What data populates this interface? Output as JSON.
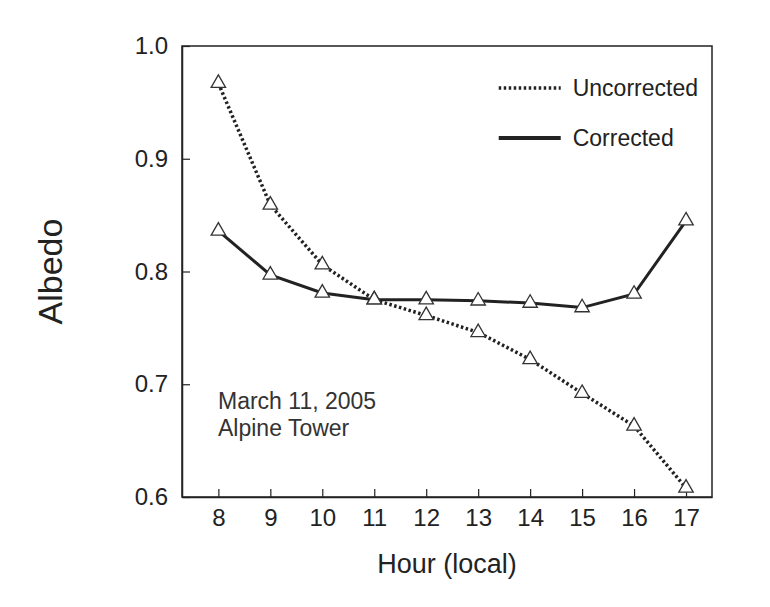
{
  "chart_data": {
    "type": "line",
    "x_label": "Hour (local)",
    "y_label": "Albedo",
    "annotations": [
      "March 11, 2005",
      "Alpine Tower"
    ],
    "x": [
      8,
      9,
      10,
      11,
      12,
      13,
      14,
      15,
      16,
      17
    ],
    "series": [
      {
        "name": "Uncorrected",
        "color": "#222222",
        "line_style": "dotted",
        "marker": "triangle",
        "values": [
          0.967,
          0.859,
          0.806,
          0.775,
          0.761,
          0.746,
          0.722,
          0.692,
          0.663,
          0.608
        ]
      },
      {
        "name": "Corrected",
        "color": "#222222",
        "line_style": "solid",
        "marker": "triangle",
        "values": [
          0.836,
          0.797,
          0.781,
          0.775,
          0.775,
          0.774,
          0.772,
          0.768,
          0.78,
          0.845
        ]
      }
    ],
    "xlim": [
      7.3,
      17.5
    ],
    "xticks": [
      8,
      9,
      10,
      11,
      12,
      13,
      14,
      15,
      16,
      17
    ],
    "ylim": [
      0.6,
      1.0
    ],
    "yticks": [
      0.6,
      0.7,
      0.8,
      0.9,
      {
        "value": 1.0,
        "label": "1.0"
      }
    ],
    "legend": "upper right",
    "grid": false
  }
}
